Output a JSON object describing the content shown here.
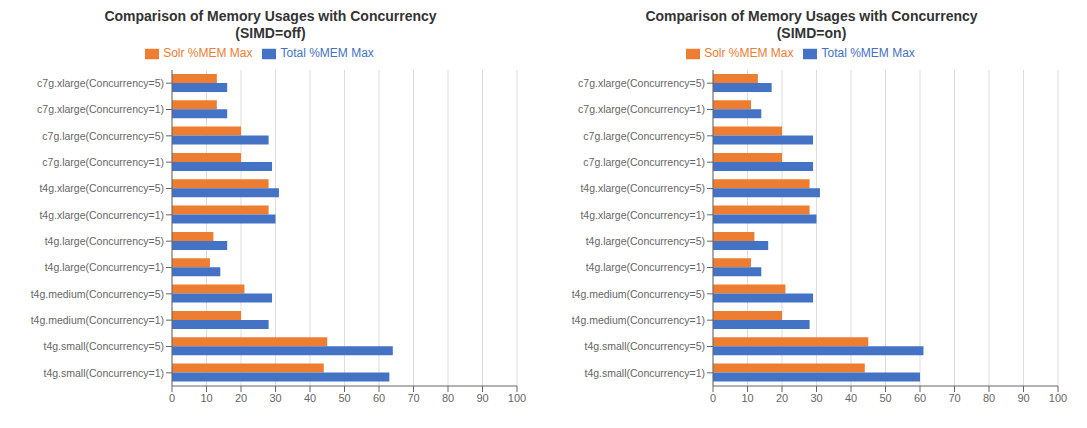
{
  "chart_data": [
    {
      "type": "bar",
      "orientation": "horizontal",
      "title": "Comparison of Memory Usages with Concurrency\n(SIMD=off)",
      "categories": [
        "c7g.xlarge(Concurrency=5)",
        "c7g.xlarge(Concurrency=1)",
        "c7g.large(Concurrency=5)",
        "c7g.large(Concurrency=1)",
        "t4g.xlarge(Concurrency=5)",
        "t4g.xlarge(Concurrency=1)",
        "t4g.large(Concurrency=5)",
        "t4g.large(Concurrency=1)",
        "t4g.medium(Concurrency=5)",
        "t4g.medium(Concurrency=1)",
        "t4g.small(Concurrency=5)",
        "t4g.small(Concurrency=1)"
      ],
      "series": [
        {
          "name": "Solr %MEM Max",
          "color": "#ED7D31",
          "values": [
            13,
            13,
            20,
            20,
            28,
            28,
            12,
            11,
            21,
            20,
            45,
            44
          ]
        },
        {
          "name": "Total %MEM Max",
          "color": "#4472C4",
          "values": [
            16,
            16,
            28,
            29,
            31,
            30,
            16,
            14,
            29,
            28,
            64,
            63
          ]
        }
      ],
      "xlim": [
        0,
        100
      ],
      "xticks": [
        0,
        10,
        20,
        30,
        40,
        50,
        60,
        70,
        80,
        90,
        100
      ],
      "grid": true,
      "legend": "top"
    },
    {
      "type": "bar",
      "orientation": "horizontal",
      "title": "Comparison of Memory Usages with Concurrency\n(SIMD=on)",
      "categories": [
        "c7g.xlarge(Concurrency=5)",
        "c7g.xlarge(Concurrency=1)",
        "c7g.large(Concurrency=5)",
        "c7g.large(Concurrency=1)",
        "t4g.xlarge(Concurrency=5)",
        "t4g.xlarge(Concurrency=1)",
        "t4g.large(Concurrency=5)",
        "t4g.large(Concurrency=1)",
        "t4g.medium(Concurrency=5)",
        "t4g.medium(Concurrency=1)",
        "t4g.small(Concurrency=5)",
        "t4g.small(Concurrency=1)"
      ],
      "series": [
        {
          "name": "Solr %MEM Max",
          "color": "#ED7D31",
          "values": [
            13,
            11,
            20,
            20,
            28,
            28,
            12,
            11,
            21,
            20,
            45,
            44
          ]
        },
        {
          "name": "Total %MEM Max",
          "color": "#4472C4",
          "values": [
            17,
            14,
            29,
            29,
            31,
            30,
            16,
            14,
            29,
            28,
            61,
            60
          ]
        }
      ],
      "xlim": [
        0,
        100
      ],
      "xticks": [
        0,
        10,
        20,
        30,
        40,
        50,
        60,
        70,
        80,
        90,
        100
      ],
      "grid": true,
      "legend": "top"
    }
  ]
}
